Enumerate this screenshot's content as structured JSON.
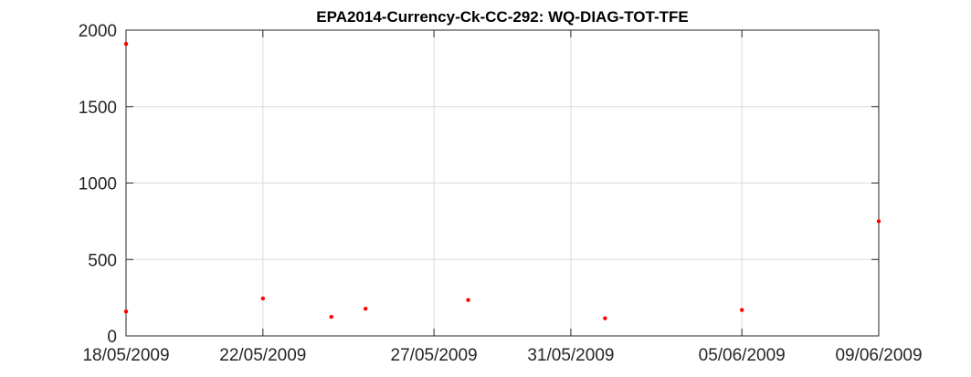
{
  "chart_data": {
    "type": "scatter",
    "title": "EPA2014-Currency-Ck-CC-292: WQ-DIAG-TOT-TFE",
    "xlabel": "",
    "ylabel": "",
    "x_tick_labels": [
      "18/05/2009",
      "22/05/2009",
      "27/05/2009",
      "31/05/2009",
      "05/06/2009",
      "09/06/2009"
    ],
    "x_ticks": [
      "2009-05-18",
      "2009-05-22",
      "2009-05-27",
      "2009-05-31",
      "2009-06-05",
      "2009-06-09"
    ],
    "xlim": [
      "2009-05-18",
      "2009-06-09"
    ],
    "ylim": [
      0,
      2000
    ],
    "y_ticks": [
      0,
      500,
      1000,
      1500,
      2000
    ],
    "grid": true,
    "marker_color": "#ff0000",
    "points": [
      {
        "x": "2009-05-18",
        "y": 1910
      },
      {
        "x": "2009-05-18",
        "y": 160
      },
      {
        "x": "2009-05-22",
        "y": 245
      },
      {
        "x": "2009-05-24",
        "y": 125
      },
      {
        "x": "2009-05-25",
        "y": 178
      },
      {
        "x": "2009-05-28",
        "y": 235
      },
      {
        "x": "2009-06-01",
        "y": 115
      },
      {
        "x": "2009-06-05",
        "y": 170
      },
      {
        "x": "2009-06-09",
        "y": 750
      }
    ]
  }
}
